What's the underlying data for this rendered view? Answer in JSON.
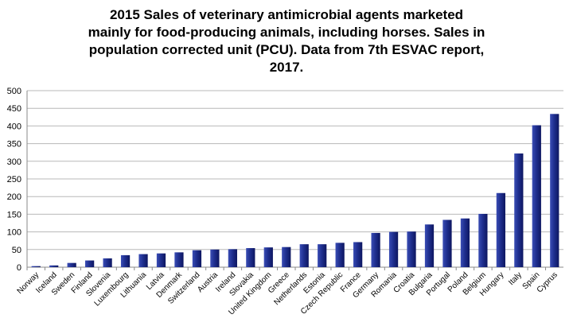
{
  "chart_data": {
    "type": "bar",
    "title": "2015 Sales of veterinary antimicrobial agents marketed\nmainly for food-producing animals, including horses. Sales in\npopulation corrected unit (PCU). Data from 7th ESVAC report,\n2017.",
    "xlabel": "",
    "ylabel": "",
    "ylim": [
      0,
      500
    ],
    "yticks": [
      0,
      50,
      100,
      150,
      200,
      250,
      300,
      350,
      400,
      450,
      500
    ],
    "grid": true,
    "legend": "none",
    "bar_color": "#1f2f8f",
    "categories": [
      "Norway",
      "Iceland",
      "Sweden",
      "Finland",
      "Slovenia",
      "Luxembourg",
      "Lithuania",
      "Latvia",
      "Denmark",
      "Switzerland",
      "Austria",
      "Ireland",
      "Slovakia",
      "United Kingdom",
      "Greece",
      "Netherlands",
      "Estonia",
      "Czech Republic",
      "France",
      "Germany",
      "Romania",
      "Croatia",
      "Bulgaria",
      "Portugal",
      "Poland",
      "Belgium",
      "Hungary",
      "Italy",
      "Spain",
      "Cyprus"
    ],
    "values": [
      3,
      5,
      12,
      19,
      25,
      34,
      37,
      39,
      42,
      48,
      50,
      51,
      54,
      56,
      57,
      65,
      65,
      69,
      71,
      97,
      100,
      101,
      121,
      134,
      138,
      151,
      210,
      322,
      402,
      434
    ]
  }
}
